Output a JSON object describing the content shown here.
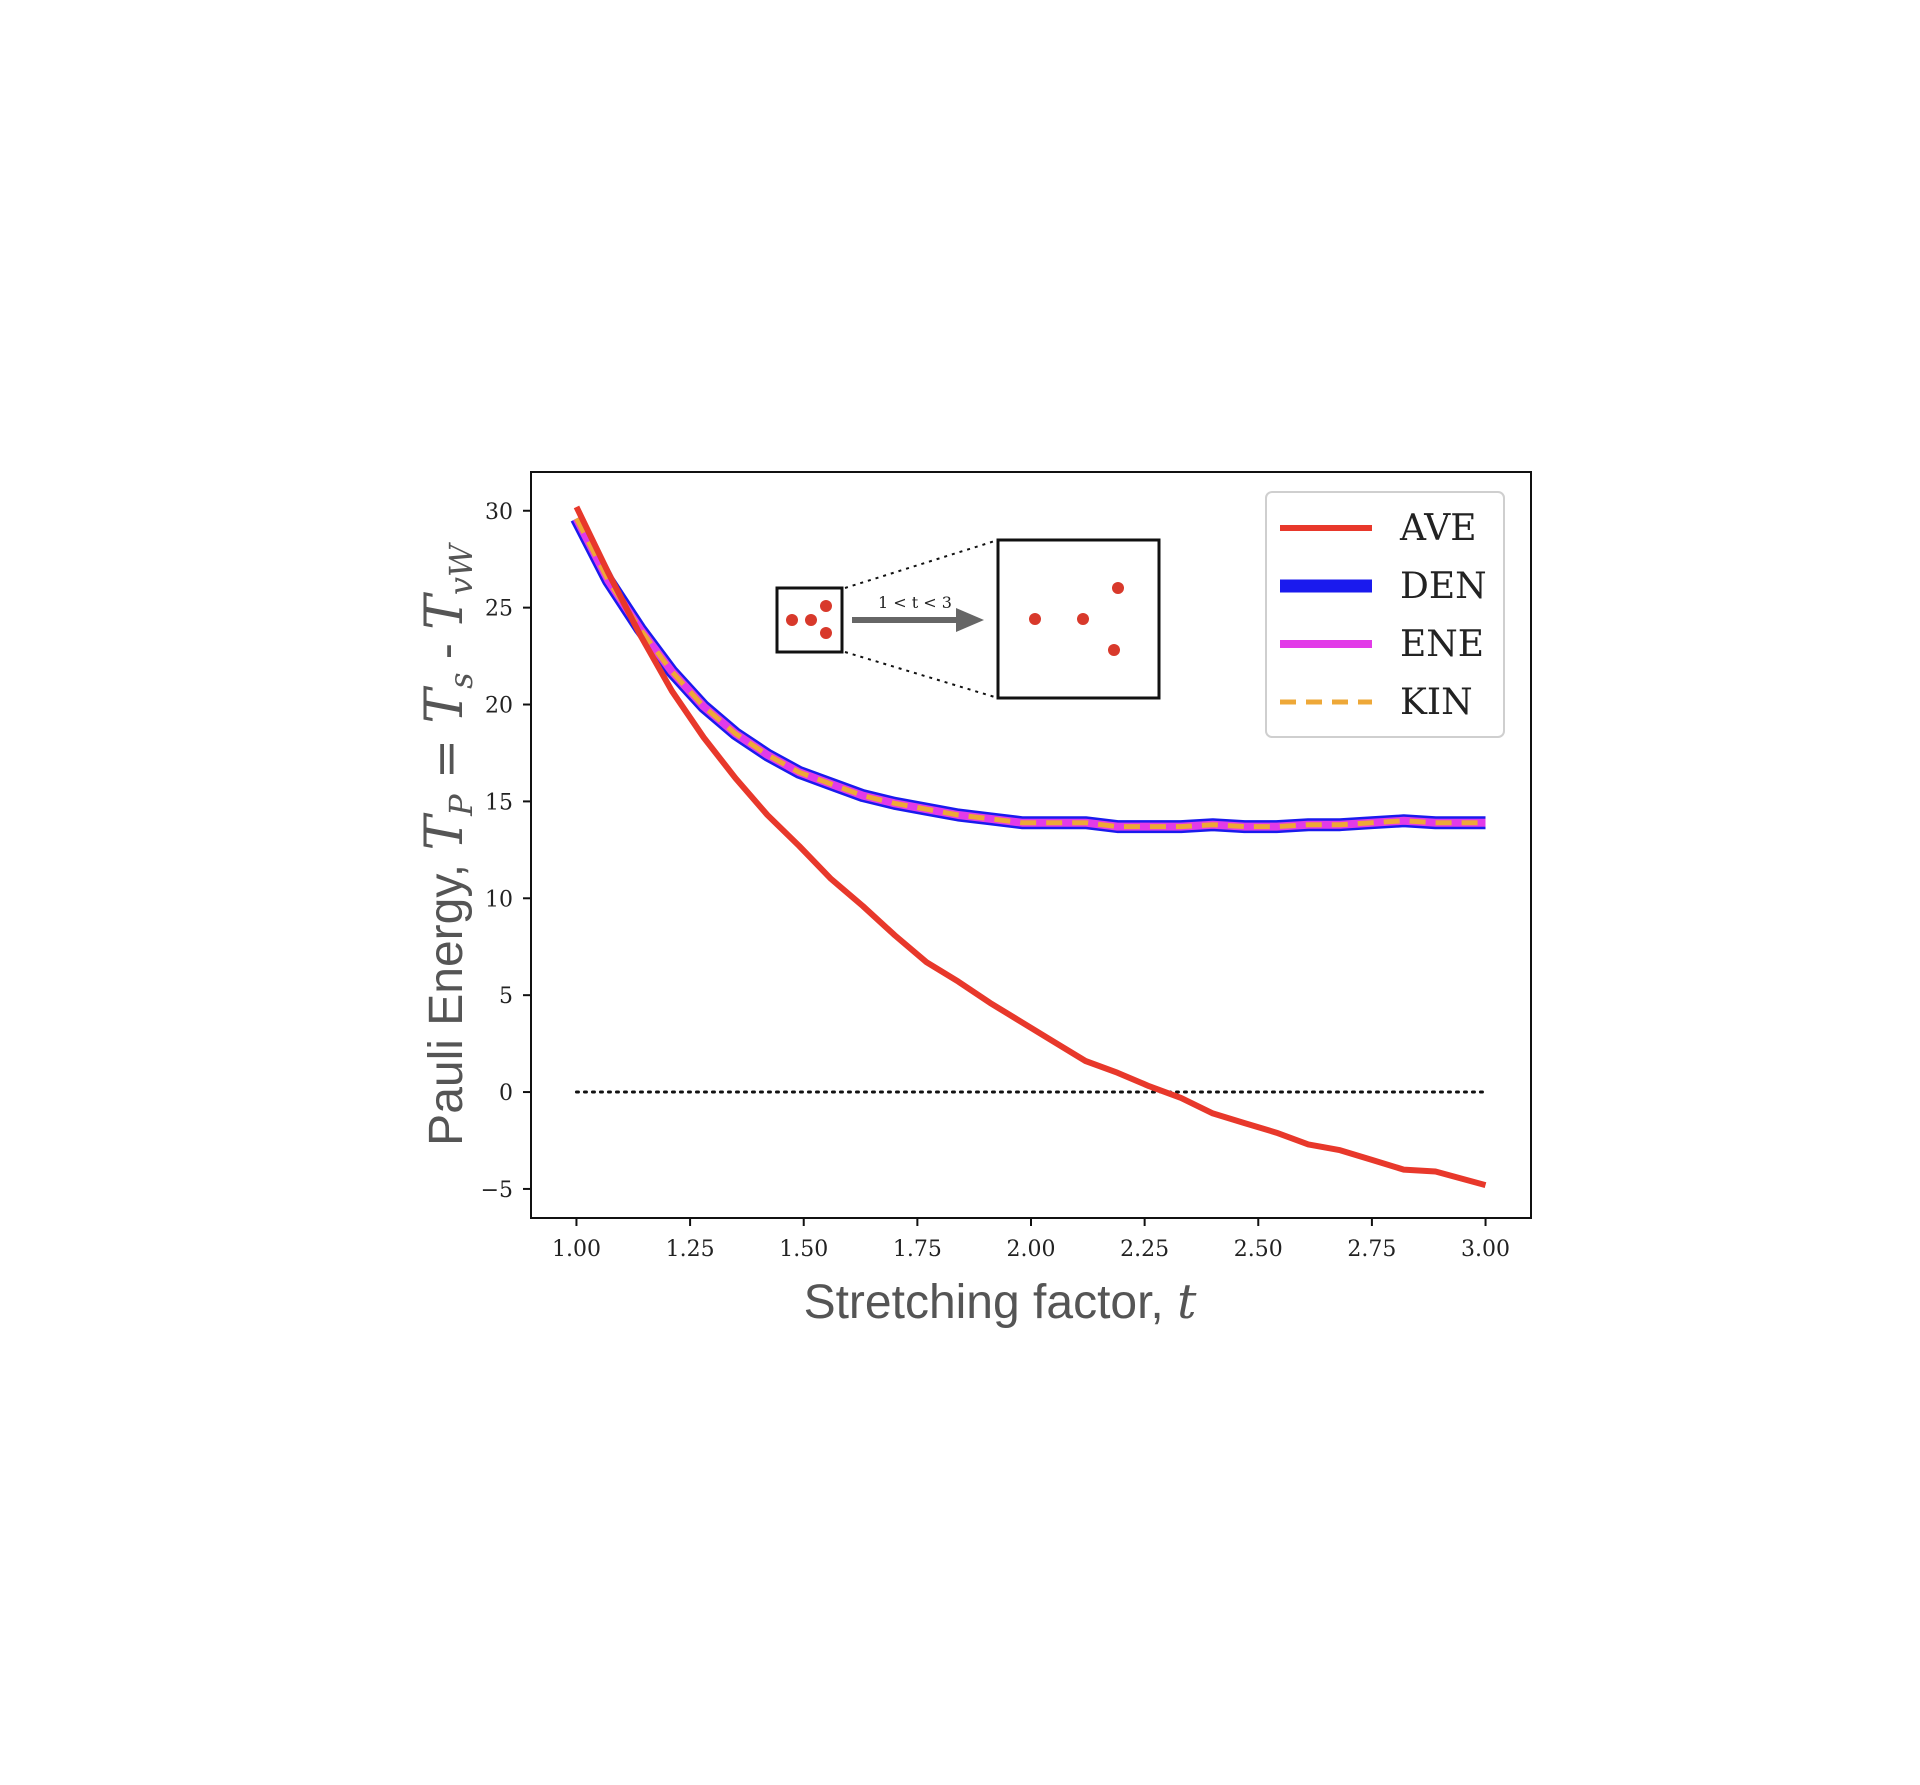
{
  "chart_data": {
    "type": "line",
    "title": "",
    "xlabel_prefix": "Stretching factor, ",
    "xlabel_var": "t",
    "ylabel_prefix": "Pauli Energy, ",
    "ylabel_math": {
      "a": "T",
      "a_sub": "P",
      "eq": " = ",
      "b": "T",
      "b_sub": "s",
      "minus": " - ",
      "c": "T",
      "c_sub": "vW"
    },
    "xlim": [
      0.9,
      3.1
    ],
    "ylim": [
      -6.5,
      32
    ],
    "xticks": [
      1.0,
      1.25,
      1.5,
      1.75,
      2.0,
      2.25,
      2.5,
      2.75,
      3.0
    ],
    "xtick_labels": [
      "1.00",
      "1.25",
      "1.50",
      "1.75",
      "2.00",
      "2.25",
      "2.50",
      "2.75",
      "3.00"
    ],
    "yticks": [
      30,
      25,
      20,
      15,
      10,
      5,
      0,
      -5
    ],
    "ytick_labels": [
      "30",
      "25",
      "20",
      "15",
      "10",
      "5",
      "0",
      "−5"
    ],
    "grid": false,
    "legend_position": "top-right",
    "x": [
      1.0,
      1.07,
      1.14,
      1.21,
      1.28,
      1.35,
      1.42,
      1.49,
      1.56,
      1.63,
      1.7,
      1.77,
      1.84,
      1.91,
      1.98,
      2.05,
      2.12,
      2.19,
      2.26,
      2.33,
      2.4,
      2.47,
      2.54,
      2.61,
      2.68,
      2.75,
      2.82,
      2.89,
      3.0
    ],
    "series": [
      {
        "name": "AVE",
        "color": "#e8382b",
        "style": "solid",
        "values": [
          30.2,
          26.8,
          23.6,
          20.7,
          18.3,
          16.2,
          14.3,
          12.7,
          11.0,
          9.6,
          8.1,
          6.7,
          5.7,
          4.6,
          3.6,
          2.6,
          1.6,
          1.0,
          0.3,
          -0.3,
          -1.1,
          -1.6,
          -2.1,
          -2.7,
          -3.0,
          -3.5,
          -4.0,
          -4.1,
          -4.8
        ]
      },
      {
        "name": "DEN",
        "color": "#1a1aee",
        "style": "solid-thick",
        "values": [
          29.6,
          26.4,
          23.9,
          21.7,
          19.9,
          18.5,
          17.4,
          16.5,
          15.9,
          15.3,
          14.9,
          14.6,
          14.3,
          14.1,
          13.9,
          13.9,
          13.9,
          13.7,
          13.7,
          13.7,
          13.8,
          13.7,
          13.7,
          13.8,
          13.8,
          13.9,
          14.0,
          13.9,
          13.9
        ]
      },
      {
        "name": "ENE",
        "color": "#e23be8",
        "style": "solid",
        "values": [
          29.6,
          26.4,
          23.9,
          21.7,
          19.9,
          18.5,
          17.4,
          16.5,
          15.9,
          15.3,
          14.9,
          14.6,
          14.3,
          14.1,
          13.9,
          13.9,
          13.9,
          13.7,
          13.7,
          13.7,
          13.8,
          13.7,
          13.7,
          13.8,
          13.8,
          13.9,
          14.0,
          13.9,
          13.9
        ]
      },
      {
        "name": "KIN",
        "color": "#eea838",
        "style": "dashed",
        "values": [
          29.6,
          26.4,
          23.9,
          21.7,
          19.9,
          18.5,
          17.4,
          16.5,
          15.9,
          15.3,
          14.9,
          14.6,
          14.3,
          14.1,
          13.9,
          13.9,
          13.9,
          13.7,
          13.7,
          13.7,
          13.8,
          13.7,
          13.7,
          13.8,
          13.8,
          13.9,
          14.0,
          13.9,
          13.9
        ]
      }
    ],
    "reference_line": {
      "y": 0,
      "x_from": 1.0,
      "x_to": 3.0,
      "style": "dotted",
      "color": "#111111"
    },
    "inset": {
      "arrow_label": "1 < t < 3",
      "dot_color": "#d8392b",
      "arrow_color": "#666666"
    }
  }
}
